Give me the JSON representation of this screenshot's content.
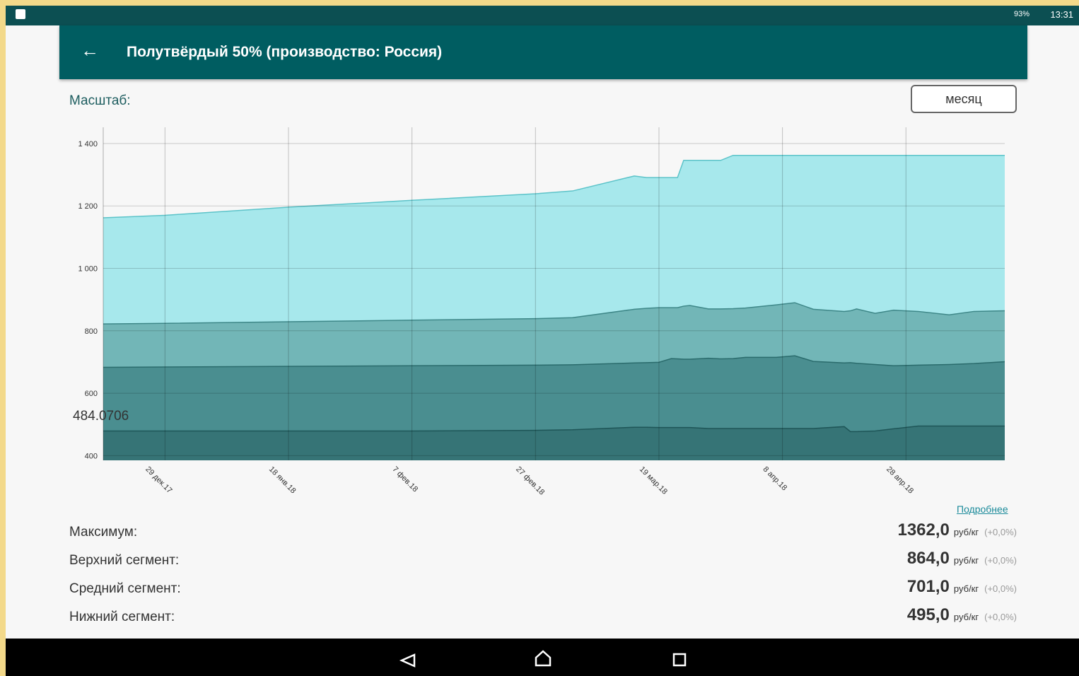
{
  "status_bar": {
    "battery": "93%",
    "time": "13:31"
  },
  "header": {
    "title": "Полутвёрдый 50% (производство: Россия)"
  },
  "scale": {
    "label": "Масштаб:",
    "button": "месяц"
  },
  "chart_data": {
    "type": "area",
    "annotation": "484.0706",
    "x": [
      0,
      10,
      30,
      50,
      70,
      76,
      86,
      88,
      90,
      92,
      93,
      94,
      95,
      98,
      100,
      102,
      104,
      109,
      112,
      115,
      120,
      121,
      122,
      125,
      128,
      132,
      137,
      141,
      146
    ],
    "xlim": [
      0,
      146
    ],
    "xticks": [
      {
        "value": 10,
        "label": "29 дек.17"
      },
      {
        "value": 30,
        "label": "18 янв.18"
      },
      {
        "value": 50,
        "label": "7 фев.18"
      },
      {
        "value": 70,
        "label": "27 фев.18"
      },
      {
        "value": 90,
        "label": "19 мар.18"
      },
      {
        "value": 110,
        "label": "8 апр.18"
      },
      {
        "value": 130,
        "label": "28 апр.18"
      }
    ],
    "ylim": [
      385,
      1452
    ],
    "yticks": [
      400,
      600,
      800,
      {
        "value": 1000,
        "label": "1 000"
      },
      {
        "value": 1200,
        "label": "1 200"
      },
      {
        "value": 1400,
        "label": "1 400"
      }
    ],
    "grid": true,
    "series": [
      {
        "color": "#a7e8ec",
        "line": "#5cc3c9",
        "values": [
          1162,
          1170,
          1196,
          1218,
          1239,
          1248,
          1296,
          1291,
          1291,
          1291,
          1291,
          1346,
          1346,
          1346,
          1346,
          1362,
          1362,
          1362,
          1362,
          1362,
          1362,
          1362,
          1362,
          1362,
          1362,
          1362,
          1362,
          1362,
          1362
        ]
      },
      {
        "color": "#72b6b7",
        "line": "#3e8788",
        "values": [
          822,
          824,
          829,
          834,
          839,
          842,
          869,
          872,
          874,
          874,
          874,
          879,
          881,
          870,
          870,
          871,
          873,
          883,
          890,
          869,
          862,
          864,
          870,
          856,
          866,
          862,
          851,
          862,
          864
        ]
      },
      {
        "color": "#4a8e90",
        "line": "#2a6b6c",
        "values": [
          683,
          684,
          686,
          688,
          690,
          691,
          697,
          698,
          699,
          711,
          710,
          709,
          709,
          712,
          710,
          711,
          715,
          715,
          720,
          702,
          697,
          698,
          696,
          692,
          688,
          690,
          692,
          695,
          701
        ]
      },
      {
        "color": "#367476",
        "line": "#1e5557",
        "values": [
          479,
          479,
          479,
          479,
          481,
          483,
          491,
          491,
          490,
          490,
          490,
          490,
          490,
          487,
          487,
          487,
          487,
          487,
          487,
          487,
          493,
          477,
          477,
          479,
          486,
          495,
          495,
          495,
          495
        ]
      }
    ]
  },
  "details_link": "Подробнее",
  "stats": [
    {
      "label": "Максимум:",
      "value": "1362,0",
      "unit": "руб/кг",
      "change": "(+0,0%)"
    },
    {
      "label": "Верхний сегмент:",
      "value": "864,0",
      "unit": "руб/кг",
      "change": "(+0,0%)"
    },
    {
      "label": "Средний сегмент:",
      "value": "701,0",
      "unit": "руб/кг",
      "change": "(+0,0%)"
    },
    {
      "label": "Нижний сегмент:",
      "value": "495,0",
      "unit": "руб/кг",
      "change": "(+0,0%)"
    }
  ]
}
